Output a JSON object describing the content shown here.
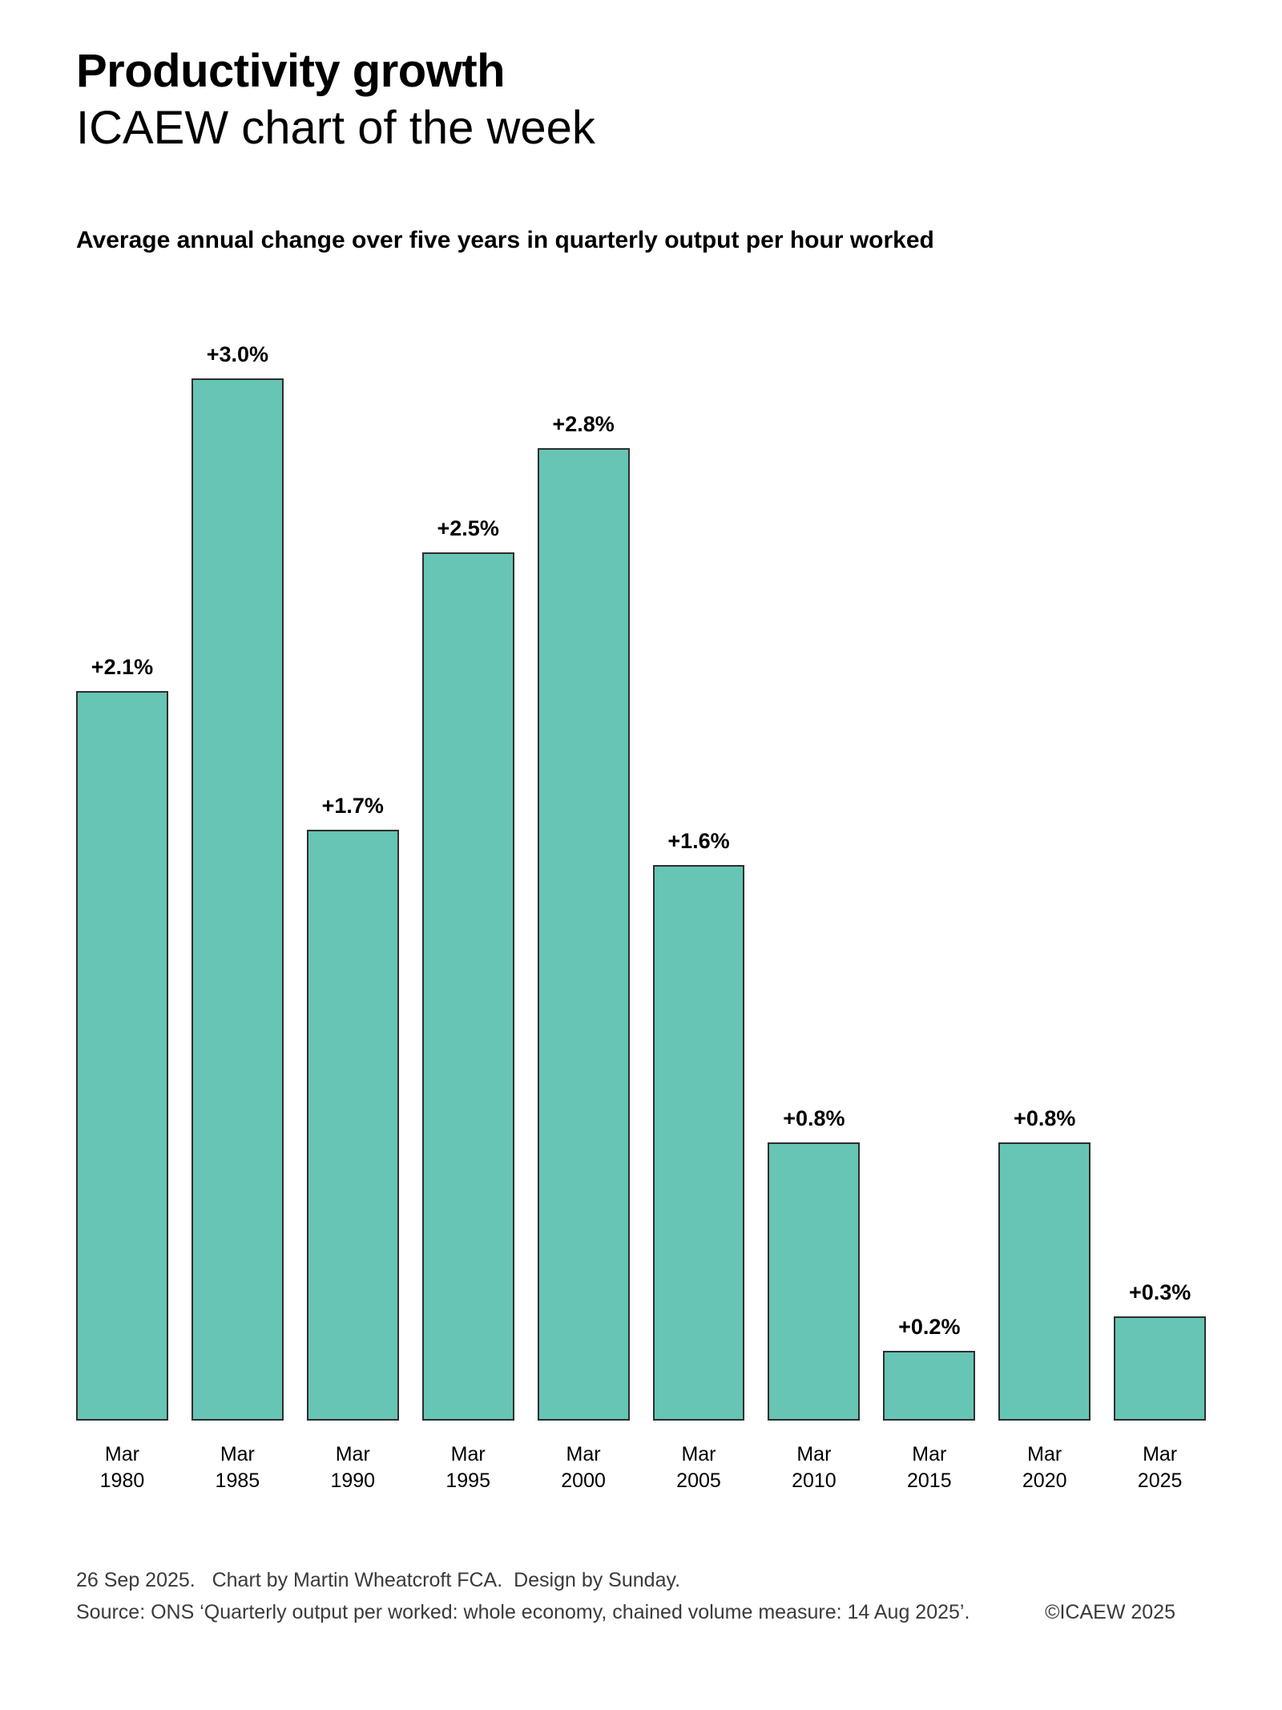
{
  "header": {
    "title_bold": "Productivity growth",
    "title_regular": "ICAEW chart of the week",
    "subtitle": "Average annual change over five years in quarterly output per hour worked"
  },
  "chart_data": {
    "type": "bar",
    "title": "Productivity growth — ICAEW chart of the week",
    "subtitle": "Average annual change over five years in quarterly output per hour worked",
    "categories": [
      "Mar\n1980",
      "Mar\n1985",
      "Mar\n1990",
      "Mar\n1995",
      "Mar\n2000",
      "Mar\n2005",
      "Mar\n2010",
      "Mar\n2015",
      "Mar\n2020",
      "Mar\n2025"
    ],
    "values": [
      2.1,
      3.0,
      1.7,
      2.5,
      2.8,
      1.6,
      0.8,
      0.2,
      0.8,
      0.3
    ],
    "data_labels": [
      "+2.1%",
      "+3.0%",
      "+1.7%",
      "+2.5%",
      "+2.8%",
      "+1.6%",
      "+0.8%",
      "+0.2%",
      "+0.8%",
      "+0.3%"
    ],
    "xlabel": "",
    "ylabel": "",
    "ylim": [
      0,
      3.0
    ],
    "grid": false,
    "legend": null,
    "axis_lines": false,
    "bar_color": "#66C5B4",
    "bar_border_color": "#2E2E2E",
    "label_color": "#000000"
  },
  "footer": {
    "line1": "26 Sep 2025.   Chart by Martin Wheatcroft FCA.  Design by Sunday.",
    "source": "Source: ONS ‘Quarterly output per worked: whole economy, chained volume measure: 14 Aug 2025’.",
    "copyright": "©ICAEW 2025"
  }
}
